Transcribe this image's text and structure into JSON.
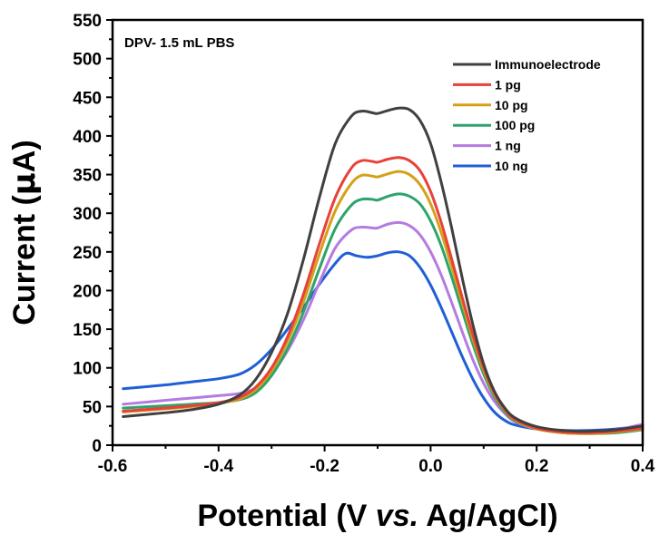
{
  "chart_data": {
    "type": "line",
    "annotation": "DPV- 1.5 mL PBS",
    "xlabel_parts": [
      "Potential (V ",
      "vs.",
      " Ag/AgCl)"
    ],
    "ylabel_parts": [
      "Current (",
      "μ",
      "A)"
    ],
    "xlim": [
      -0.6,
      0.4
    ],
    "ylim": [
      0,
      550
    ],
    "xticks": [
      -0.6,
      -0.4,
      -0.2,
      0.0,
      0.2,
      0.4
    ],
    "xtick_labels": [
      "-0.6",
      "-0.4",
      "-0.2",
      "0.0",
      "0.2",
      "0.4"
    ],
    "yticks": [
      0,
      50,
      100,
      150,
      200,
      250,
      300,
      350,
      400,
      450,
      500,
      550
    ],
    "ytick_labels": [
      "0",
      "50",
      "100",
      "150",
      "200",
      "250",
      "300",
      "350",
      "400",
      "450",
      "500",
      "550"
    ],
    "grid": false,
    "legend_position": "top-right",
    "series": [
      {
        "name": "Immunoelectrode",
        "color": "#404040",
        "points": [
          [
            -0.58,
            37
          ],
          [
            -0.5,
            42
          ],
          [
            -0.45,
            46
          ],
          [
            -0.4,
            53
          ],
          [
            -0.36,
            65
          ],
          [
            -0.33,
            85
          ],
          [
            -0.3,
            120
          ],
          [
            -0.27,
            170
          ],
          [
            -0.24,
            240
          ],
          [
            -0.21,
            320
          ],
          [
            -0.18,
            390
          ],
          [
            -0.15,
            425
          ],
          [
            -0.13,
            432
          ],
          [
            -0.11,
            430
          ],
          [
            -0.1,
            429
          ],
          [
            -0.08,
            433
          ],
          [
            -0.06,
            436
          ],
          [
            -0.04,
            434
          ],
          [
            -0.02,
            420
          ],
          [
            0.0,
            390
          ],
          [
            0.02,
            340
          ],
          [
            0.04,
            280
          ],
          [
            0.06,
            215
          ],
          [
            0.08,
            155
          ],
          [
            0.1,
            105
          ],
          [
            0.12,
            70
          ],
          [
            0.14,
            48
          ],
          [
            0.16,
            35
          ],
          [
            0.2,
            24
          ],
          [
            0.25,
            19
          ],
          [
            0.3,
            18
          ],
          [
            0.35,
            20
          ],
          [
            0.4,
            25
          ]
        ]
      },
      {
        "name": "1 pg",
        "color": "#e8413a",
        "points": [
          [
            -0.58,
            44
          ],
          [
            -0.5,
            48
          ],
          [
            -0.45,
            51
          ],
          [
            -0.4,
            55
          ],
          [
            -0.36,
            62
          ],
          [
            -0.33,
            75
          ],
          [
            -0.3,
            100
          ],
          [
            -0.27,
            140
          ],
          [
            -0.24,
            195
          ],
          [
            -0.21,
            260
          ],
          [
            -0.18,
            320
          ],
          [
            -0.15,
            358
          ],
          [
            -0.13,
            368
          ],
          [
            -0.11,
            367
          ],
          [
            -0.1,
            366
          ],
          [
            -0.08,
            370
          ],
          [
            -0.06,
            372
          ],
          [
            -0.04,
            368
          ],
          [
            -0.02,
            355
          ],
          [
            0.0,
            328
          ],
          [
            0.02,
            288
          ],
          [
            0.04,
            240
          ],
          [
            0.06,
            190
          ],
          [
            0.08,
            142
          ],
          [
            0.1,
            100
          ],
          [
            0.12,
            68
          ],
          [
            0.14,
            46
          ],
          [
            0.16,
            33
          ],
          [
            0.2,
            22
          ],
          [
            0.25,
            17
          ],
          [
            0.3,
            16
          ],
          [
            0.35,
            18
          ],
          [
            0.4,
            22
          ]
        ]
      },
      {
        "name": "10 pg",
        "color": "#d4a017",
        "points": [
          [
            -0.58,
            43
          ],
          [
            -0.5,
            47
          ],
          [
            -0.45,
            50
          ],
          [
            -0.4,
            54
          ],
          [
            -0.36,
            60
          ],
          [
            -0.33,
            72
          ],
          [
            -0.3,
            96
          ],
          [
            -0.27,
            134
          ],
          [
            -0.24,
            185
          ],
          [
            -0.21,
            247
          ],
          [
            -0.18,
            303
          ],
          [
            -0.15,
            338
          ],
          [
            -0.13,
            349
          ],
          [
            -0.11,
            348
          ],
          [
            -0.1,
            347
          ],
          [
            -0.08,
            351
          ],
          [
            -0.06,
            354
          ],
          [
            -0.04,
            350
          ],
          [
            -0.02,
            337
          ],
          [
            0.0,
            312
          ],
          [
            0.02,
            275
          ],
          [
            0.04,
            230
          ],
          [
            0.06,
            183
          ],
          [
            0.08,
            137
          ],
          [
            0.1,
            97
          ],
          [
            0.12,
            66
          ],
          [
            0.14,
            45
          ],
          [
            0.16,
            32
          ],
          [
            0.2,
            21
          ],
          [
            0.25,
            16
          ],
          [
            0.3,
            15
          ],
          [
            0.35,
            17
          ],
          [
            0.4,
            21
          ]
        ]
      },
      {
        "name": "100 pg",
        "color": "#2ea36b",
        "points": [
          [
            -0.58,
            48
          ],
          [
            -0.5,
            51
          ],
          [
            -0.45,
            53
          ],
          [
            -0.4,
            55
          ],
          [
            -0.36,
            59
          ],
          [
            -0.33,
            68
          ],
          [
            -0.3,
            90
          ],
          [
            -0.27,
            125
          ],
          [
            -0.24,
            172
          ],
          [
            -0.21,
            228
          ],
          [
            -0.18,
            280
          ],
          [
            -0.15,
            310
          ],
          [
            -0.13,
            318
          ],
          [
            -0.11,
            318
          ],
          [
            -0.1,
            317
          ],
          [
            -0.08,
            322
          ],
          [
            -0.06,
            325
          ],
          [
            -0.04,
            322
          ],
          [
            -0.02,
            312
          ],
          [
            0.0,
            290
          ],
          [
            0.02,
            258
          ],
          [
            0.04,
            217
          ],
          [
            0.06,
            173
          ],
          [
            0.08,
            130
          ],
          [
            0.1,
            92
          ],
          [
            0.12,
            63
          ],
          [
            0.14,
            43
          ],
          [
            0.16,
            31
          ],
          [
            0.2,
            21
          ],
          [
            0.25,
            16
          ],
          [
            0.3,
            15
          ],
          [
            0.35,
            16
          ],
          [
            0.4,
            20
          ]
        ]
      },
      {
        "name": "1 ng",
        "color": "#b57be0",
        "points": [
          [
            -0.58,
            53
          ],
          [
            -0.5,
            58
          ],
          [
            -0.45,
            61
          ],
          [
            -0.4,
            64
          ],
          [
            -0.36,
            67
          ],
          [
            -0.33,
            74
          ],
          [
            -0.3,
            92
          ],
          [
            -0.27,
            122
          ],
          [
            -0.24,
            162
          ],
          [
            -0.21,
            210
          ],
          [
            -0.18,
            255
          ],
          [
            -0.15,
            278
          ],
          [
            -0.13,
            282
          ],
          [
            -0.11,
            281
          ],
          [
            -0.1,
            281
          ],
          [
            -0.08,
            286
          ],
          [
            -0.06,
            288
          ],
          [
            -0.04,
            284
          ],
          [
            -0.02,
            272
          ],
          [
            0.0,
            250
          ],
          [
            0.02,
            220
          ],
          [
            0.04,
            184
          ],
          [
            0.06,
            146
          ],
          [
            0.08,
            110
          ],
          [
            0.1,
            80
          ],
          [
            0.12,
            57
          ],
          [
            0.14,
            41
          ],
          [
            0.16,
            30
          ],
          [
            0.2,
            21
          ],
          [
            0.25,
            17
          ],
          [
            0.3,
            17
          ],
          [
            0.35,
            20
          ],
          [
            0.4,
            27
          ]
        ]
      },
      {
        "name": "10 ng",
        "color": "#1f5fd6",
        "points": [
          [
            -0.58,
            73
          ],
          [
            -0.5,
            78
          ],
          [
            -0.45,
            82
          ],
          [
            -0.4,
            86
          ],
          [
            -0.36,
            92
          ],
          [
            -0.33,
            104
          ],
          [
            -0.3,
            124
          ],
          [
            -0.27,
            150
          ],
          [
            -0.24,
            178
          ],
          [
            -0.21,
            208
          ],
          [
            -0.18,
            235
          ],
          [
            -0.16,
            248
          ],
          [
            -0.14,
            245
          ],
          [
            -0.12,
            243
          ],
          [
            -0.1,
            245
          ],
          [
            -0.08,
            249
          ],
          [
            -0.06,
            250
          ],
          [
            -0.04,
            245
          ],
          [
            -0.02,
            230
          ],
          [
            0.0,
            207
          ],
          [
            0.02,
            178
          ],
          [
            0.04,
            146
          ],
          [
            0.06,
            114
          ],
          [
            0.08,
            85
          ],
          [
            0.1,
            61
          ],
          [
            0.12,
            43
          ],
          [
            0.14,
            32
          ],
          [
            0.16,
            26
          ],
          [
            0.2,
            21
          ],
          [
            0.25,
            19
          ],
          [
            0.3,
            19
          ],
          [
            0.35,
            21
          ],
          [
            0.4,
            25
          ]
        ]
      }
    ]
  }
}
